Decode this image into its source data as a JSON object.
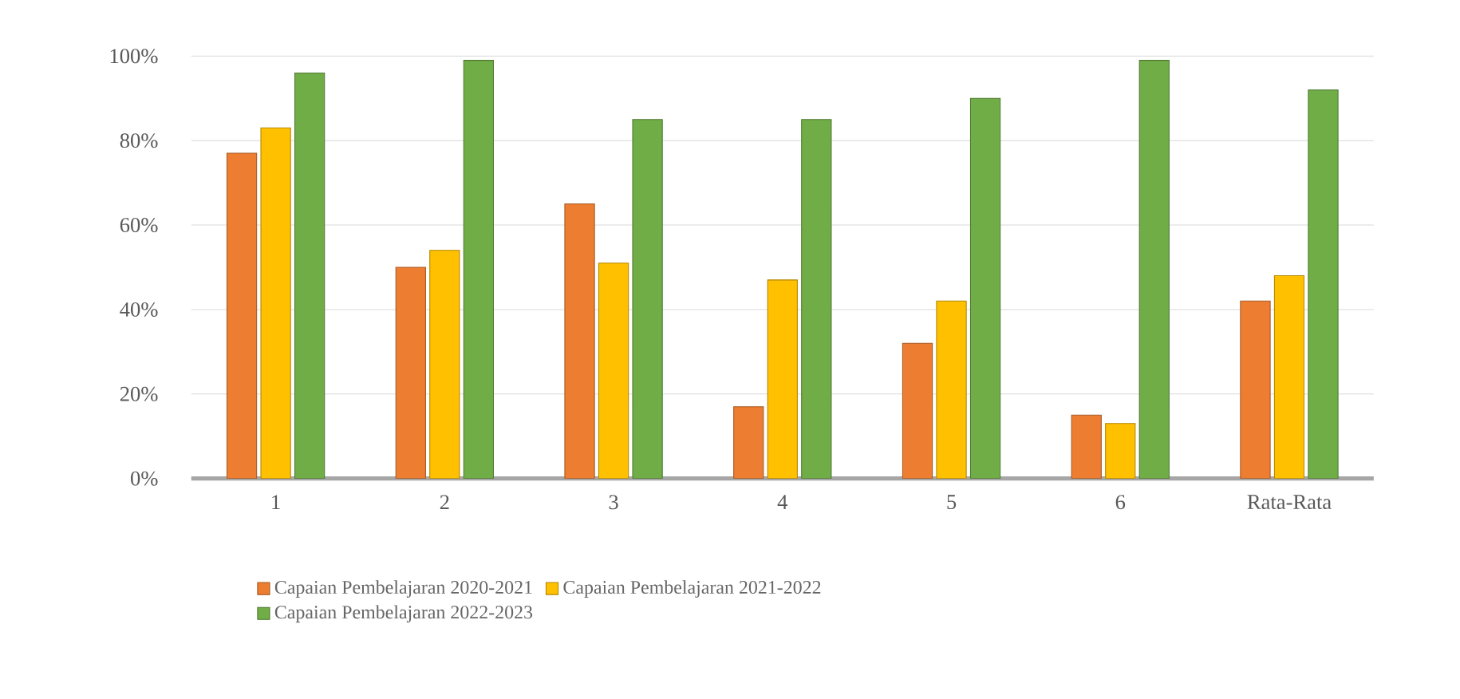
{
  "chart_data": {
    "type": "bar",
    "categories": [
      "1",
      "2",
      "3",
      "4",
      "5",
      "6",
      "Rata-Rata"
    ],
    "series": [
      {
        "name": "Capaian Pembelajaran 2020-2021",
        "color": "#ed7d31",
        "values": [
          77,
          50,
          65,
          17,
          32,
          15,
          42
        ]
      },
      {
        "name": "Capaian Pembelajaran 2021-2022",
        "color": "#ffc000",
        "values": [
          83,
          54,
          51,
          47,
          42,
          13,
          48
        ]
      },
      {
        "name": "Capaian Pembelajaran 2022-2023",
        "color": "#70ad47",
        "values": [
          96,
          99,
          85,
          85,
          90,
          99,
          92
        ]
      }
    ],
    "ylim": [
      0,
      100
    ],
    "yticks": [
      {
        "value": 0,
        "label": "0%"
      },
      {
        "value": 20,
        "label": "20%"
      },
      {
        "value": 40,
        "label": "40%"
      },
      {
        "value": 60,
        "label": "60%"
      },
      {
        "value": 80,
        "label": "80%"
      },
      {
        "value": 100,
        "label": "100%"
      }
    ],
    "grid": "y",
    "legend": "bottom"
  }
}
